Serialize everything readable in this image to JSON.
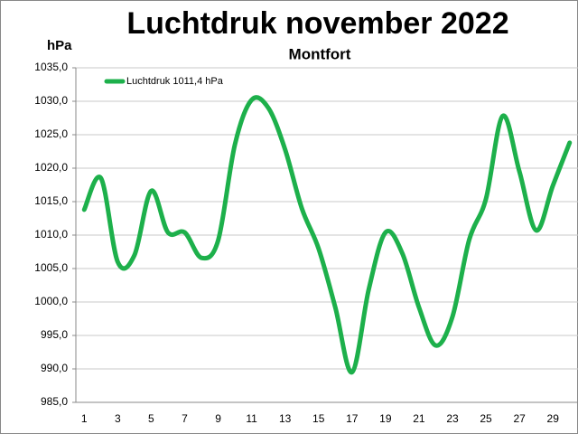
{
  "chart_data": {
    "type": "line",
    "title": "Luchtdruk november 2022",
    "subtitle": "Montfort",
    "y_label": "hPa",
    "categories": [
      "1",
      null,
      "3",
      null,
      "5",
      null,
      "7",
      null,
      "9",
      null,
      "11",
      null,
      "13",
      null,
      "15",
      null,
      "17",
      null,
      "19",
      null,
      "21",
      null,
      "23",
      null,
      "25",
      null,
      "27",
      null,
      "29",
      null
    ],
    "series": [
      {
        "name": "Luchtdruk 1011,4 hPa",
        "color": "#1db04b",
        "values": [
          1013.8,
          1018.5,
          1006.0,
          1007.0,
          1016.6,
          1010.4,
          1010.4,
          1006.6,
          1009.2,
          1023.5,
          1030.2,
          1029.0,
          1022.8,
          1014.0,
          1008.0,
          999.2,
          989.5,
          1001.9,
          1010.4,
          1007.3,
          999.2,
          993.5,
          997.8,
          1009.3,
          1015.4,
          1027.8,
          1019.5,
          1010.7,
          1017.4,
          1023.8
        ]
      }
    ],
    "ylim": [
      985,
      1035
    ],
    "yticks": [
      {
        "value": 985,
        "label": "985,0"
      },
      {
        "value": 990,
        "label": "990,0"
      },
      {
        "value": 995,
        "label": "995,0"
      },
      {
        "value": 1000,
        "label": "1000,0"
      },
      {
        "value": 1005,
        "label": "1005,0"
      },
      {
        "value": 1010,
        "label": "1010,0"
      },
      {
        "value": 1015,
        "label": "1015,0"
      },
      {
        "value": 1020,
        "label": "1020,0"
      },
      {
        "value": 1025,
        "label": "1025,0"
      },
      {
        "value": 1030,
        "label": "1030,0"
      },
      {
        "value": 1035,
        "label": "1035,0"
      }
    ],
    "grid": true,
    "legend": "upper left"
  }
}
